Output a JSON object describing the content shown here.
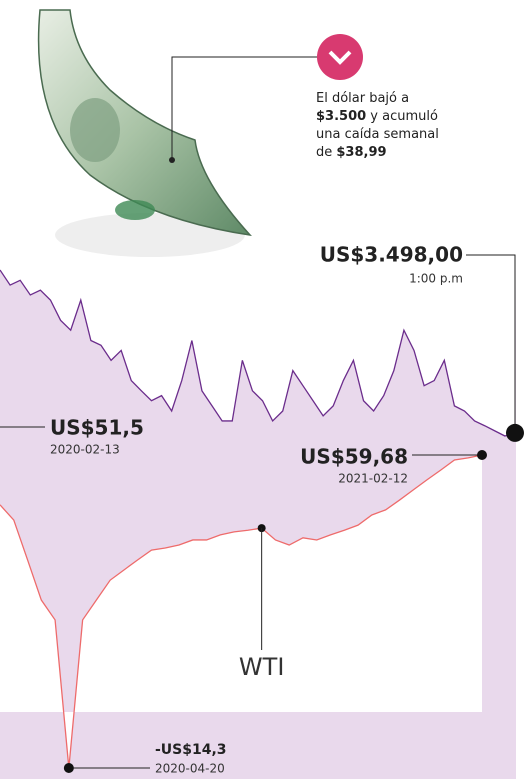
{
  "chart_data": {
    "type": "line",
    "note_text": [
      {
        "text": "El dólar bajó a"
      },
      {
        "text": "$3.500",
        "bold": true
      },
      {
        "text": " y acumuló"
      },
      {
        "text": "una caída semanal"
      },
      {
        "text": "de "
      },
      {
        "text": "$38,99",
        "bold": true
      }
    ],
    "series": [
      {
        "name": null,
        "color": "#6b2d8c",
        "values": [
          3974,
          3930,
          3944,
          3901,
          3915,
          3886,
          3827,
          3798,
          3886,
          3768,
          3754,
          3710,
          3739,
          3651,
          3621,
          3592,
          3607,
          3562,
          3651,
          3768,
          3621,
          3577,
          3533,
          3533,
          3710,
          3621,
          3592,
          3533,
          3562,
          3680,
          3636,
          3592,
          3548,
          3577,
          3651,
          3710,
          3592,
          3562,
          3607,
          3680,
          3798,
          3739,
          3636,
          3651,
          3710,
          3577,
          3562,
          3533,
          3519,
          3504,
          3489,
          3498
        ]
      },
      {
        "name": "WTI",
        "color": "#ee6b6b",
        "values": [
          47.9,
          44.3,
          34.9,
          25.4,
          20.7,
          -14.3,
          20.7,
          25.4,
          30.1,
          32.5,
          34.9,
          37.2,
          37.7,
          38.4,
          39.6,
          39.6,
          40.8,
          41.5,
          41.9,
          42.4,
          39.6,
          38.4,
          40.1,
          39.6,
          40.8,
          41.9,
          43.1,
          45.5,
          46.7,
          49.0,
          51.4,
          53.8,
          56.1,
          58.5,
          59.0,
          59.68
        ]
      }
    ],
    "annotations": [
      {
        "label": "US$3.498,00",
        "sublabel": "1:00 p.m"
      },
      {
        "label": "US$51,5",
        "sublabel": "2020-02-13"
      },
      {
        "label": "US$59,68",
        "sublabel": "2021-02-12"
      },
      {
        "label": "-US$14,3",
        "sublabel": "2020-04-20"
      }
    ]
  }
}
